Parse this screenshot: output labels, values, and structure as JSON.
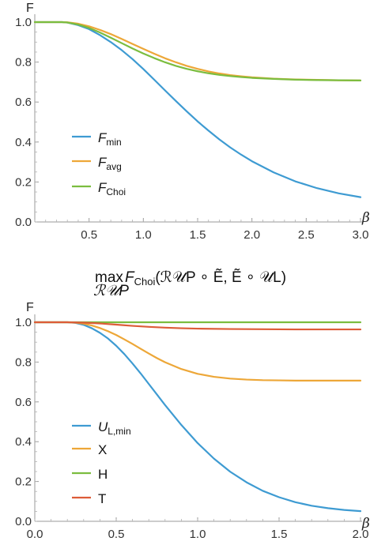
{
  "chart_data": [
    {
      "type": "line",
      "ylabel": "F",
      "xlabel": "β",
      "xlim": [
        0,
        3.0
      ],
      "ylim": [
        0,
        1.0
      ],
      "xticks": [
        "0.5",
        "1.0",
        "1.5",
        "2.0",
        "2.5",
        "3.0"
      ],
      "yticks": [
        "0.0",
        "0.2",
        "0.4",
        "0.6",
        "0.8",
        "1.0"
      ],
      "legend_position": "left-bottom",
      "series": [
        {
          "name": "F_min",
          "main": "F",
          "sub": "min",
          "color": "#3e9bd2",
          "x": [
            0,
            0.25,
            0.3,
            0.4,
            0.5,
            0.6,
            0.7,
            0.8,
            0.9,
            1.0,
            1.1,
            1.2,
            1.3,
            1.4,
            1.5,
            1.6,
            1.7,
            1.8,
            1.9,
            2.0,
            2.2,
            2.4,
            2.6,
            2.8,
            3.0
          ],
          "y": [
            1.0,
            1.0,
            0.998,
            0.985,
            0.965,
            0.935,
            0.9,
            0.86,
            0.815,
            0.765,
            0.712,
            0.658,
            0.605,
            0.553,
            0.503,
            0.457,
            0.413,
            0.373,
            0.337,
            0.304,
            0.248,
            0.203,
            0.169,
            0.143,
            0.124
          ]
        },
        {
          "name": "F_avg",
          "main": "F",
          "sub": "avg",
          "color": "#eda738",
          "x": [
            0,
            0.25,
            0.3,
            0.4,
            0.5,
            0.6,
            0.7,
            0.8,
            0.9,
            1.0,
            1.1,
            1.2,
            1.3,
            1.4,
            1.5,
            1.6,
            1.7,
            1.8,
            1.9,
            2.0,
            2.2,
            2.4,
            2.6,
            2.8,
            3.0
          ],
          "y": [
            1.0,
            1.0,
            0.999,
            0.992,
            0.979,
            0.961,
            0.94,
            0.916,
            0.891,
            0.866,
            0.842,
            0.819,
            0.799,
            0.781,
            0.766,
            0.753,
            0.743,
            0.735,
            0.729,
            0.724,
            0.717,
            0.713,
            0.711,
            0.709,
            0.708
          ]
        },
        {
          "name": "F_Choi",
          "main": "F",
          "sub": "Choi",
          "color": "#7bbd3f",
          "x": [
            0,
            0.25,
            0.3,
            0.4,
            0.5,
            0.6,
            0.7,
            0.8,
            0.9,
            1.0,
            1.1,
            1.2,
            1.3,
            1.4,
            1.5,
            1.6,
            1.7,
            1.8,
            1.9,
            2.0,
            2.2,
            2.4,
            2.6,
            2.8,
            3.0
          ],
          "y": [
            1.0,
            1.0,
            0.998,
            0.988,
            0.971,
            0.948,
            0.922,
            0.895,
            0.868,
            0.843,
            0.82,
            0.799,
            0.781,
            0.766,
            0.754,
            0.744,
            0.736,
            0.73,
            0.725,
            0.721,
            0.716,
            0.712,
            0.71,
            0.709,
            0.708
          ]
        }
      ]
    },
    {
      "type": "line",
      "title_parts": {
        "max": "max",
        "max_sub": "ℛ𝒰P",
        "func": "F",
        "func_sub": "Choi",
        "args": "(ℛ𝒰P ∘ Ẽ, Ẽ ∘ 𝒰L)"
      },
      "ylabel": "F",
      "xlabel": "β",
      "xlim": [
        0,
        2.0
      ],
      "ylim": [
        0,
        1.0
      ],
      "xticks": [
        "0.0",
        "0.5",
        "1.0",
        "1.5",
        "2.0"
      ],
      "yticks": [
        "0.0",
        "0.2",
        "0.4",
        "0.6",
        "0.8",
        "1.0"
      ],
      "legend_position": "left-bottom",
      "series": [
        {
          "name": "U_L,min",
          "main": "U",
          "sub": "L,min",
          "color": "#3e9bd2",
          "x": [
            0,
            0.2,
            0.25,
            0.3,
            0.35,
            0.4,
            0.45,
            0.5,
            0.55,
            0.6,
            0.65,
            0.7,
            0.75,
            0.8,
            0.9,
            1.0,
            1.1,
            1.2,
            1.3,
            1.4,
            1.5,
            1.6,
            1.7,
            1.8,
            1.9,
            2.0
          ],
          "y": [
            1.0,
            1.0,
            0.997,
            0.987,
            0.97,
            0.947,
            0.918,
            0.882,
            0.84,
            0.793,
            0.743,
            0.69,
            0.637,
            0.584,
            0.484,
            0.393,
            0.315,
            0.249,
            0.196,
            0.153,
            0.121,
            0.096,
            0.078,
            0.066,
            0.057,
            0.051
          ]
        },
        {
          "name": "X",
          "main": "X",
          "sub": "",
          "color": "#eda738",
          "x": [
            0,
            0.2,
            0.25,
            0.3,
            0.35,
            0.4,
            0.45,
            0.5,
            0.55,
            0.6,
            0.65,
            0.7,
            0.75,
            0.8,
            0.9,
            1.0,
            1.1,
            1.2,
            1.3,
            1.4,
            1.5,
            1.6,
            1.7,
            1.8,
            1.9,
            2.0
          ],
          "y": [
            1.0,
            1.0,
            0.998,
            0.993,
            0.984,
            0.971,
            0.955,
            0.936,
            0.914,
            0.891,
            0.867,
            0.843,
            0.82,
            0.799,
            0.765,
            0.741,
            0.726,
            0.717,
            0.712,
            0.709,
            0.708,
            0.707,
            0.707,
            0.707,
            0.707,
            0.707
          ]
        },
        {
          "name": "H",
          "main": "H",
          "sub": "",
          "color": "#7bbd3f",
          "x": [
            0,
            2.0
          ],
          "y": [
            1.0,
            1.0
          ]
        },
        {
          "name": "T",
          "main": "T",
          "sub": "",
          "color": "#dd5c38",
          "x": [
            0,
            0.2,
            0.3,
            0.4,
            0.5,
            0.6,
            0.7,
            0.8,
            0.9,
            1.0,
            1.2,
            1.4,
            1.6,
            1.8,
            2.0
          ],
          "y": [
            1.0,
            1.0,
            0.998,
            0.994,
            0.988,
            0.982,
            0.977,
            0.973,
            0.97,
            0.968,
            0.966,
            0.965,
            0.964,
            0.964,
            0.964
          ]
        }
      ]
    }
  ]
}
